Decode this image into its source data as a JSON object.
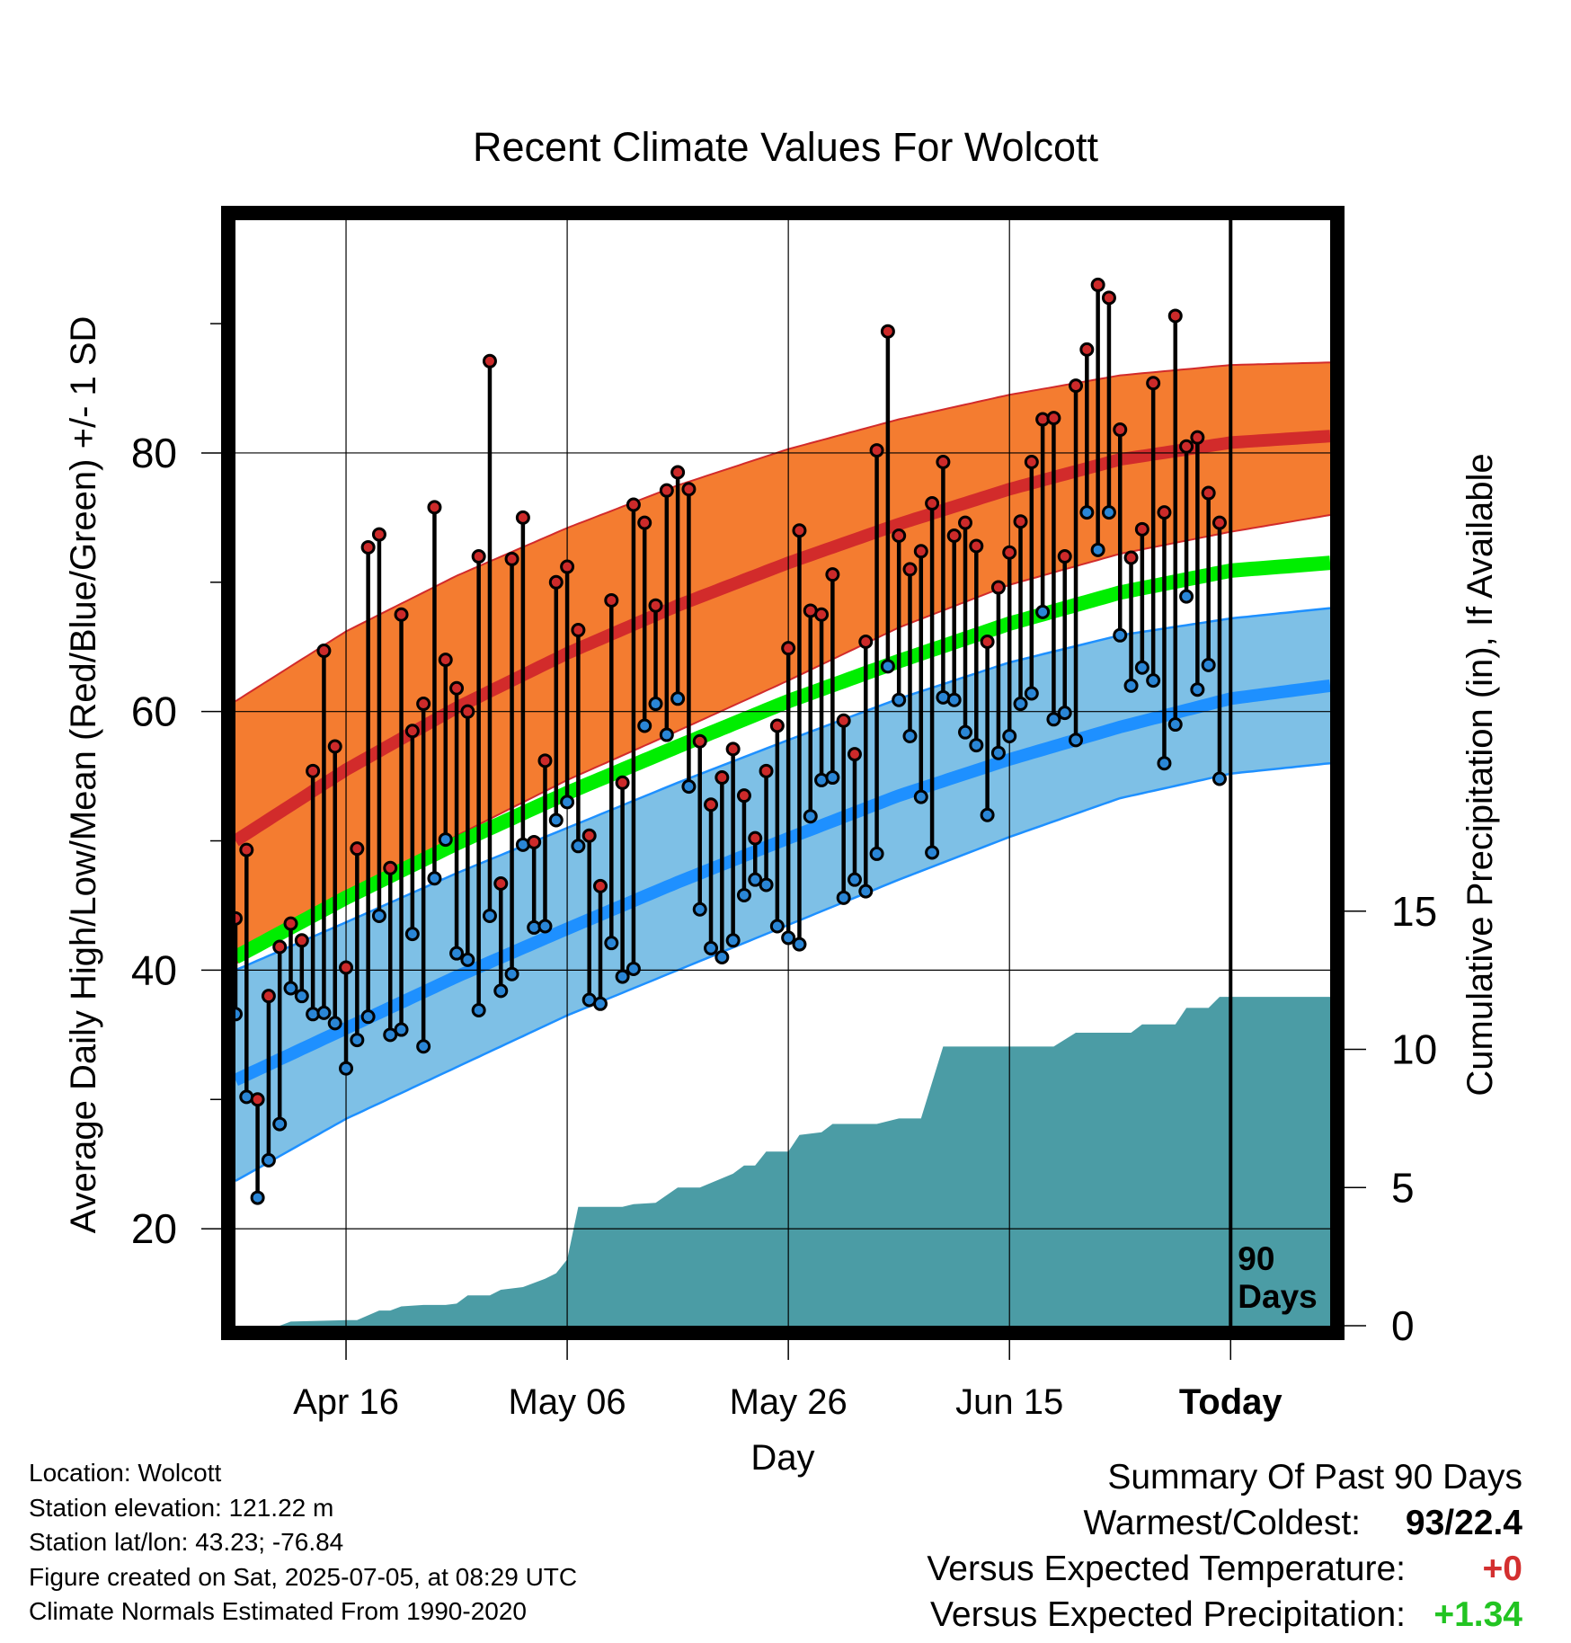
{
  "chart_data": {
    "type": "line",
    "title": "Recent Climate Values For Wolcott",
    "xlabel": "Day",
    "ylabel": "Average Daily High/Low/Mean (Red/Blue/Green) +/- 1 SD",
    "y2label": "Cumulative Precipitation (in), If Available",
    "x_tick_labels": [
      "Apr 16",
      "May 06",
      "May 26",
      "Jun 15",
      "Today"
    ],
    "x_tick_days": [
      10,
      30,
      50,
      70,
      90
    ],
    "xlim": [
      0,
      99
    ],
    "ylim": [
      12.5,
      98
    ],
    "yticks": [
      20,
      40,
      60,
      80
    ],
    "y2lim": [
      0,
      40
    ],
    "y2ticks": [
      0,
      5,
      10,
      15
    ],
    "today_marker_label": "90\nDays",
    "today_day": 90,
    "grid": true,
    "colors": {
      "high_band": "#f47c30",
      "high_mean": "#d22b2b",
      "low_band": "#7ec0e6",
      "low_mean": "#1e90ff",
      "mean": "#00ee00",
      "precip": "#4b9ca5",
      "high_marker": "#cc2a2a",
      "low_marker": "#2a86d6"
    },
    "normals": {
      "days": [
        0,
        10,
        20,
        30,
        40,
        50,
        60,
        70,
        80,
        90,
        99
      ],
      "high_mean": [
        50.0,
        55.5,
        60.3,
        64.5,
        68.2,
        71.5,
        74.5,
        77.2,
        79.5,
        80.8,
        81.3
      ],
      "high_sd_upper": [
        60.8,
        66.2,
        70.5,
        74.2,
        77.5,
        80.3,
        82.6,
        84.5,
        86.0,
        86.8,
        87.0
      ],
      "high_sd_lower": [
        40.5,
        45.6,
        50.4,
        54.7,
        58.5,
        62.4,
        66.5,
        69.8,
        72.2,
        73.9,
        75.2
      ],
      "low_mean": [
        31.5,
        35.5,
        39.5,
        43.2,
        46.8,
        50.2,
        53.5,
        56.3,
        58.8,
        61.0,
        62.0
      ],
      "low_sd_upper": [
        40.0,
        43.7,
        47.5,
        51.0,
        54.5,
        57.8,
        61.0,
        63.8,
        65.9,
        67.2,
        68.0
      ],
      "low_sd_lower": [
        23.7,
        28.5,
        32.5,
        36.5,
        40.0,
        43.5,
        47.0,
        50.3,
        53.3,
        55.2,
        56.0
      ],
      "mean": [
        41.0,
        45.6,
        49.8,
        53.7,
        57.3,
        60.8,
        63.9,
        66.8,
        69.2,
        70.9,
        71.5
      ]
    },
    "series": [
      {
        "name": "High",
        "start_day": 0,
        "values": [
          44,
          49.3,
          30,
          38,
          41.8,
          43.6,
          42.3,
          55.4,
          64.7,
          57.3,
          40.2,
          49.4,
          72.7,
          73.7,
          47.9,
          67.5,
          58.5,
          60.6,
          75.8,
          64,
          61.8,
          60,
          72,
          87.1,
          46.7,
          71.8,
          75,
          49.9,
          56.2,
          70,
          71.2,
          66.3,
          50.4,
          46.5,
          68.6,
          54.5,
          76,
          74.6,
          68.2,
          77.1,
          78.5,
          77.2,
          57.7,
          52.8,
          54.9,
          57.1,
          53.5,
          50.2,
          55.4,
          58.9,
          64.9,
          74,
          67.8,
          67.5,
          70.6,
          59.3,
          56.7,
          65.4,
          80.2,
          89.4,
          73.6,
          71,
          72.4,
          76.1,
          79.3,
          73.6,
          74.6,
          72.8,
          65.4,
          69.6,
          72.3,
          74.7,
          79.3,
          82.6,
          82.7,
          72,
          85.2,
          88,
          93,
          92,
          81.8,
          71.9,
          74.1,
          85.4,
          75.4,
          90.6,
          80.5,
          81.2,
          76.9,
          74.6
        ]
      },
      {
        "name": "Low",
        "start_day": 0,
        "values": [
          36.6,
          30.2,
          22.4,
          25.3,
          28.1,
          38.6,
          38,
          36.6,
          36.7,
          35.9,
          32.4,
          34.6,
          36.4,
          44.2,
          35,
          35.4,
          42.8,
          34.1,
          47.1,
          50.1,
          41.3,
          40.8,
          36.9,
          44.2,
          38.4,
          39.7,
          49.7,
          43.3,
          43.4,
          51.6,
          53,
          49.6,
          37.7,
          37.4,
          42.1,
          39.5,
          40.1,
          58.9,
          60.6,
          58.2,
          61,
          54.2,
          44.7,
          41.7,
          41,
          42.3,
          45.8,
          47,
          46.6,
          43.4,
          42.5,
          42,
          51.9,
          54.7,
          54.9,
          45.6,
          47,
          46.1,
          49,
          63.5,
          60.9,
          58.1,
          53.4,
          49.1,
          61.1,
          60.9,
          58.4,
          57.4,
          52,
          56.8,
          58.1,
          60.6,
          61.4,
          67.7,
          59.4,
          59.9,
          57.8,
          75.4,
          72.5,
          75.4,
          65.9,
          62,
          63.4,
          62.4,
          56,
          59,
          68.9,
          61.7,
          63.6,
          54.8
        ]
      }
    ],
    "precip_cumulative": {
      "days": [
        0,
        4,
        5,
        10,
        11,
        13,
        14,
        15,
        17,
        19,
        20,
        21,
        23,
        24,
        26,
        28,
        29,
        30,
        31,
        32,
        35,
        36,
        38,
        40,
        41,
        42,
        45,
        46,
        47,
        48,
        49,
        50,
        51,
        53,
        54,
        56,
        58,
        60,
        61,
        62,
        64,
        65,
        66,
        67,
        69,
        70,
        72,
        74,
        76,
        78,
        80,
        81,
        82,
        83,
        84,
        85,
        86,
        87,
        88,
        89,
        90,
        99
      ],
      "values": [
        0.0,
        0.0,
        0.15,
        0.2,
        0.2,
        0.55,
        0.55,
        0.7,
        0.75,
        0.75,
        0.8,
        1.1,
        1.1,
        1.3,
        1.4,
        1.7,
        1.9,
        2.4,
        4.3,
        4.3,
        4.3,
        4.4,
        4.45,
        5.0,
        5.0,
        5.0,
        5.5,
        5.8,
        5.8,
        6.3,
        6.3,
        6.3,
        6.9,
        7.0,
        7.3,
        7.3,
        7.3,
        7.5,
        7.5,
        7.5,
        10.1,
        10.1,
        10.1,
        10.1,
        10.1,
        10.1,
        10.1,
        10.1,
        10.6,
        10.6,
        10.6,
        10.6,
        10.9,
        10.9,
        10.9,
        10.9,
        11.5,
        11.5,
        11.5,
        11.9,
        11.9,
        11.9
      ]
    }
  },
  "footer": {
    "location": "Location: Wolcott",
    "elevation": "Station elevation: 121.22 m",
    "latlon": "Station lat/lon: 43.23; -76.84",
    "created": "Figure created on Sat, 2025-07-05, at 08:29 UTC",
    "normals": "Climate Normals Estimated From 1990-2020"
  },
  "summary": {
    "heading": "Summary Of Past 90 Days",
    "warmest_coldest_label": "Warmest/Coldest:",
    "warmest_coldest_value": "93/22.4",
    "temp_label": "Versus Expected Temperature:",
    "temp_value": "+0",
    "temp_color": "#d32f2f",
    "precip_label": "Versus Expected Precipitation:",
    "precip_value": "+1.34",
    "precip_color": "#22c422"
  }
}
